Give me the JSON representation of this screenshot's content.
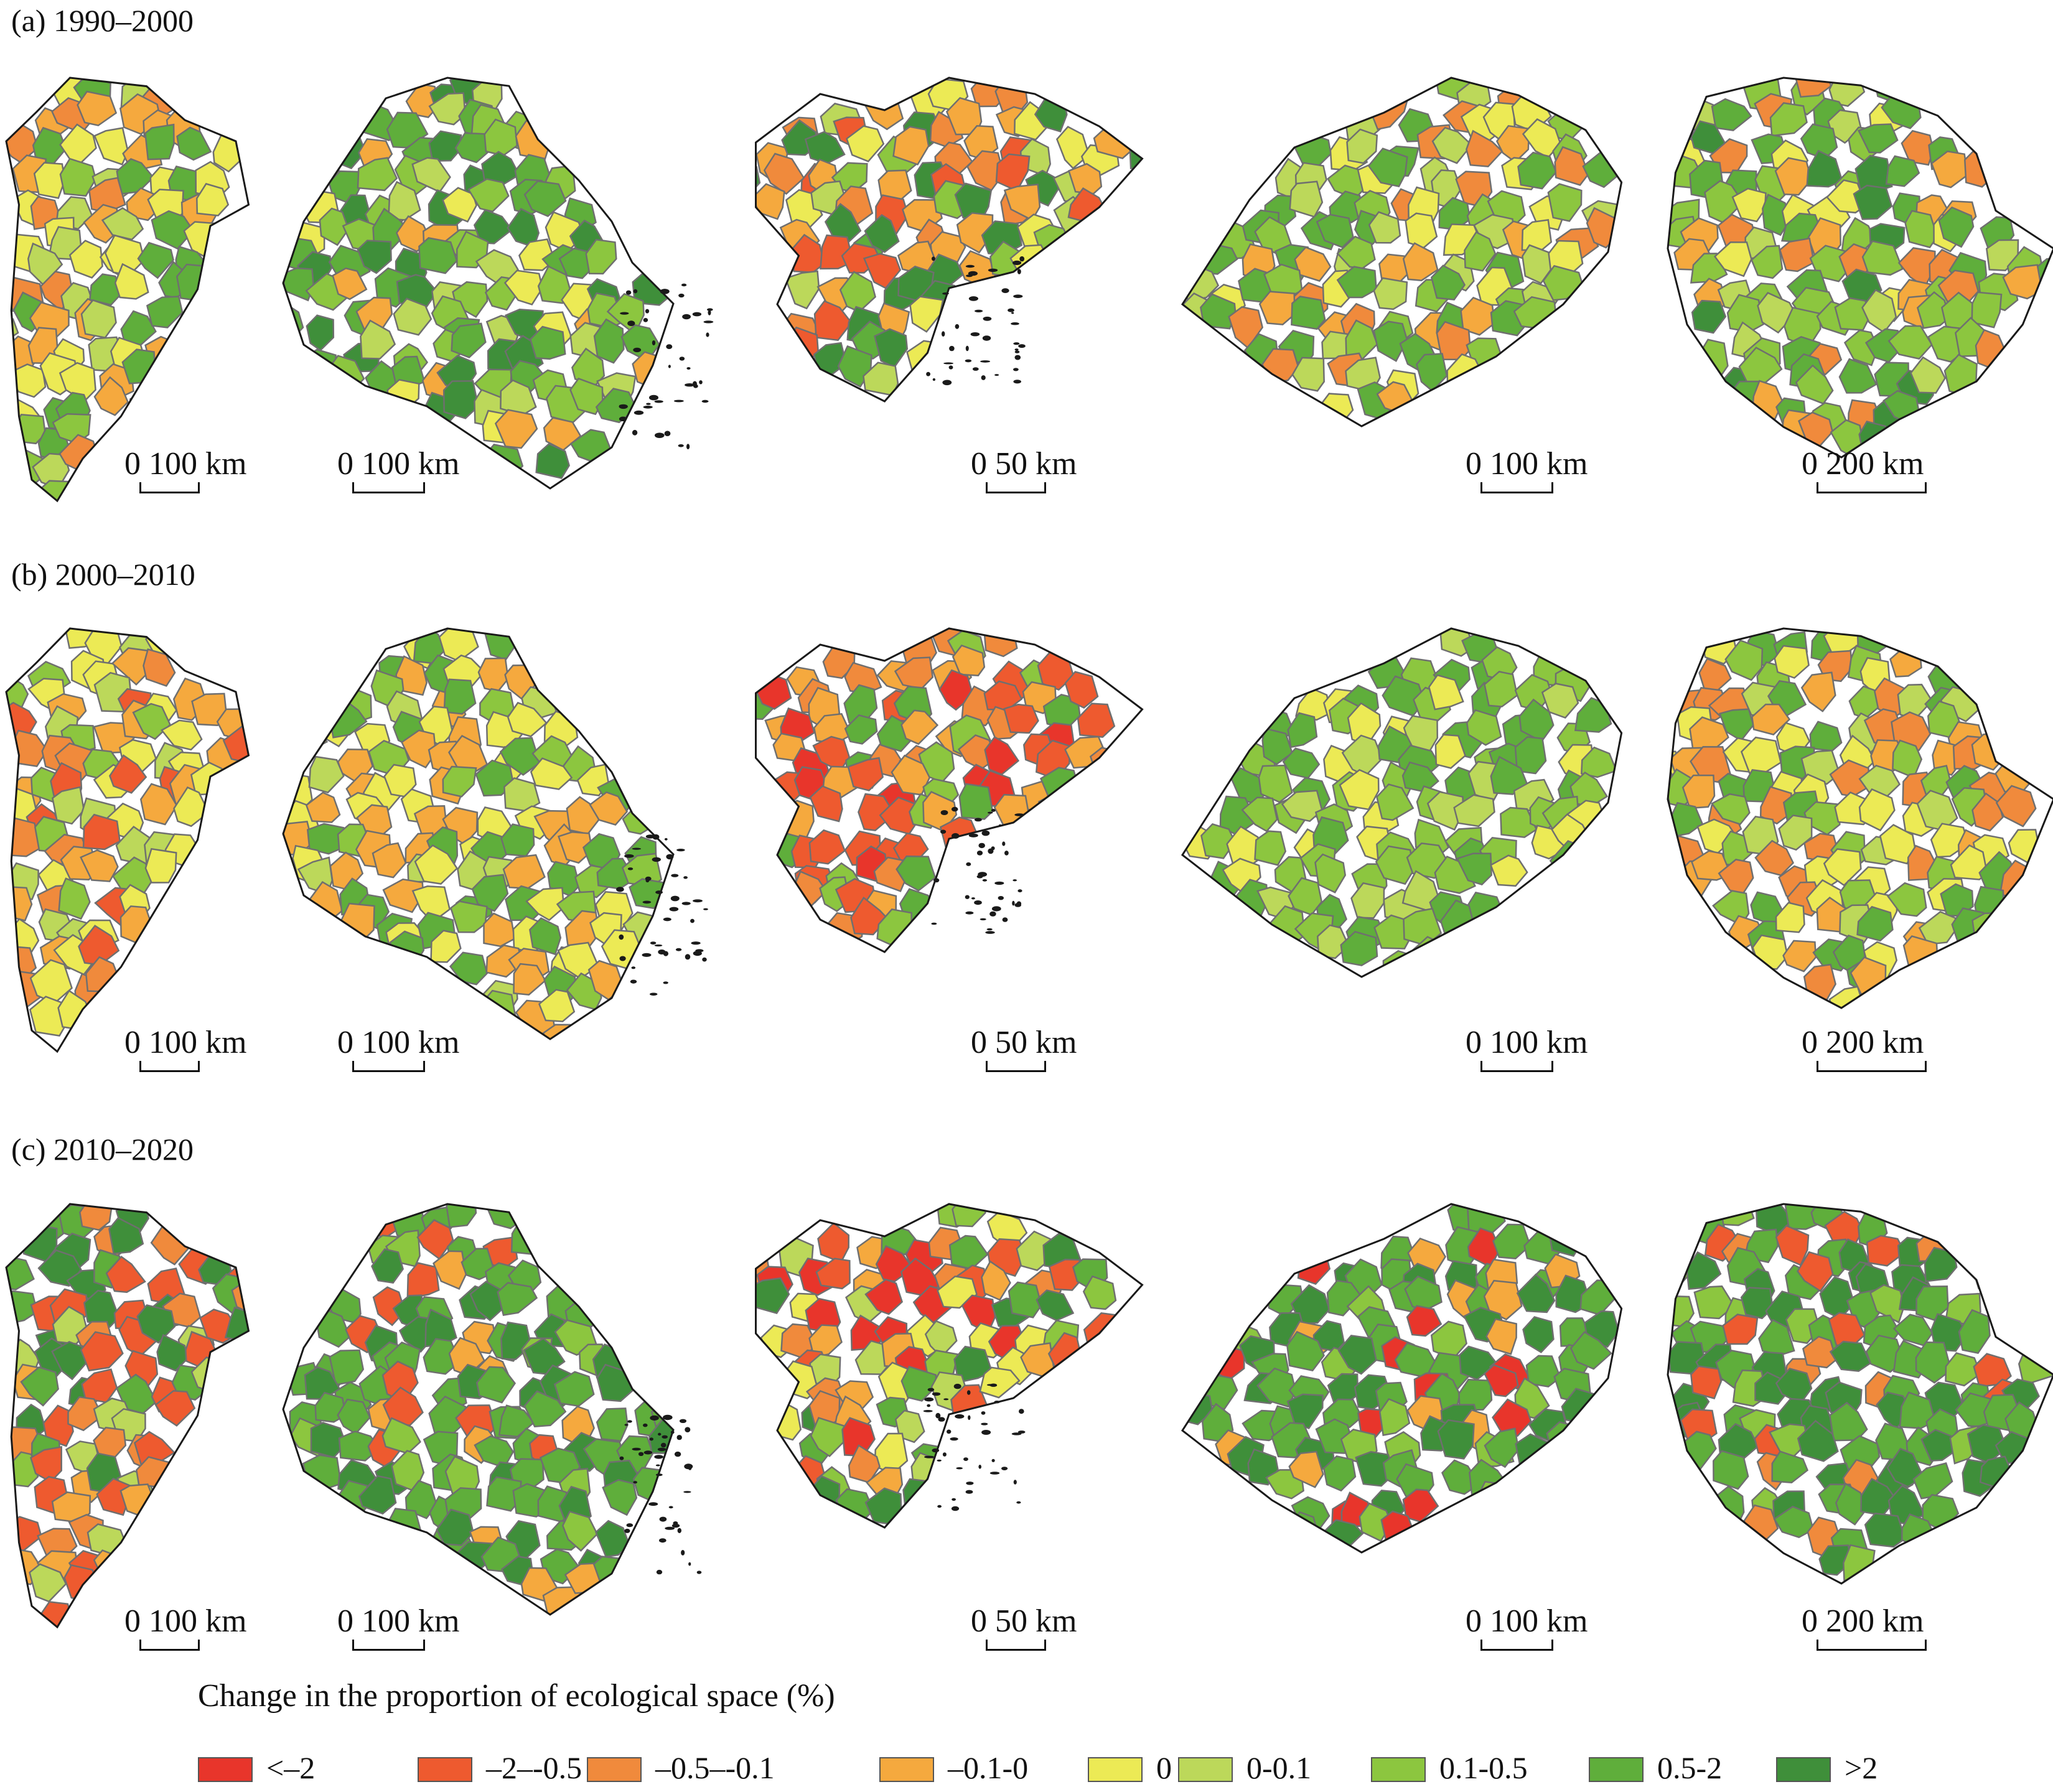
{
  "rows": [
    {
      "title": "(a) 1990–2000",
      "scales": [
        "0 100 km",
        "0 100 km",
        "0 50 km",
        "0 100 km",
        "0 200 km"
      ]
    },
    {
      "title": "(b) 2000–2010",
      "scales": [
        "0 100 km",
        "0 100 km",
        "0 50 km",
        "0 100 km",
        "0 200 km"
      ]
    },
    {
      "title": "(c) 2010–2020",
      "scales": [
        "0 100 km",
        "0 100 km",
        "0 50 km",
        "0 100 km",
        "0 200 km"
      ]
    }
  ],
  "legend": {
    "title": "Change in the proportion of ecological space (%)",
    "items": [
      {
        "label": "<–2",
        "color": "#e8352b"
      },
      {
        "label": "–2–-0.5",
        "color": "#ee5a2f"
      },
      {
        "label": "–0.5–-0.1",
        "color": "#f08a3c"
      },
      {
        "label": "–0.1-0",
        "color": "#f5a93e"
      },
      {
        "label": "0",
        "color": "#ecea55"
      },
      {
        "label": "0-0.1",
        "color": "#bcd85a"
      },
      {
        "label": "0.1-0.5",
        "color": "#8cc63f"
      },
      {
        "label": "0.5-2",
        "color": "#5fae3b"
      },
      {
        "label": ">2",
        "color": "#3f8f3a"
      }
    ]
  },
  "colors": {
    "boundary": "#6f6f6f",
    "outline": "#1a1a1a"
  },
  "region_mix": [
    [
      [
        2,
        3,
        3,
        4,
        4,
        4,
        5,
        6,
        7,
        7
      ],
      [
        5,
        6,
        6,
        7,
        7,
        7,
        8,
        8,
        3,
        4
      ],
      [
        1,
        2,
        3,
        3,
        4,
        5,
        6,
        7,
        8,
        8
      ],
      [
        2,
        3,
        4,
        4,
        5,
        5,
        6,
        6,
        7,
        7
      ],
      [
        2,
        3,
        4,
        5,
        6,
        6,
        6,
        7,
        7,
        8
      ]
    ],
    [
      [
        1,
        2,
        3,
        3,
        4,
        4,
        4,
        4,
        5,
        6
      ],
      [
        3,
        3,
        3,
        4,
        4,
        4,
        5,
        6,
        7,
        7
      ],
      [
        0,
        1,
        1,
        1,
        2,
        2,
        3,
        3,
        6,
        7
      ],
      [
        5,
        6,
        6,
        6,
        6,
        7,
        7,
        7,
        7,
        4
      ],
      [
        2,
        2,
        3,
        3,
        4,
        4,
        5,
        6,
        7,
        7
      ]
    ],
    [
      [
        1,
        1,
        2,
        2,
        3,
        5,
        6,
        7,
        8,
        8
      ],
      [
        6,
        7,
        7,
        7,
        7,
        7,
        8,
        8,
        3,
        1
      ],
      [
        0,
        0,
        1,
        2,
        3,
        4,
        5,
        6,
        7,
        8
      ],
      [
        0,
        6,
        7,
        7,
        7,
        7,
        8,
        8,
        8,
        3
      ],
      [
        7,
        7,
        7,
        7,
        8,
        8,
        8,
        2,
        1,
        6
      ]
    ]
  ]
}
